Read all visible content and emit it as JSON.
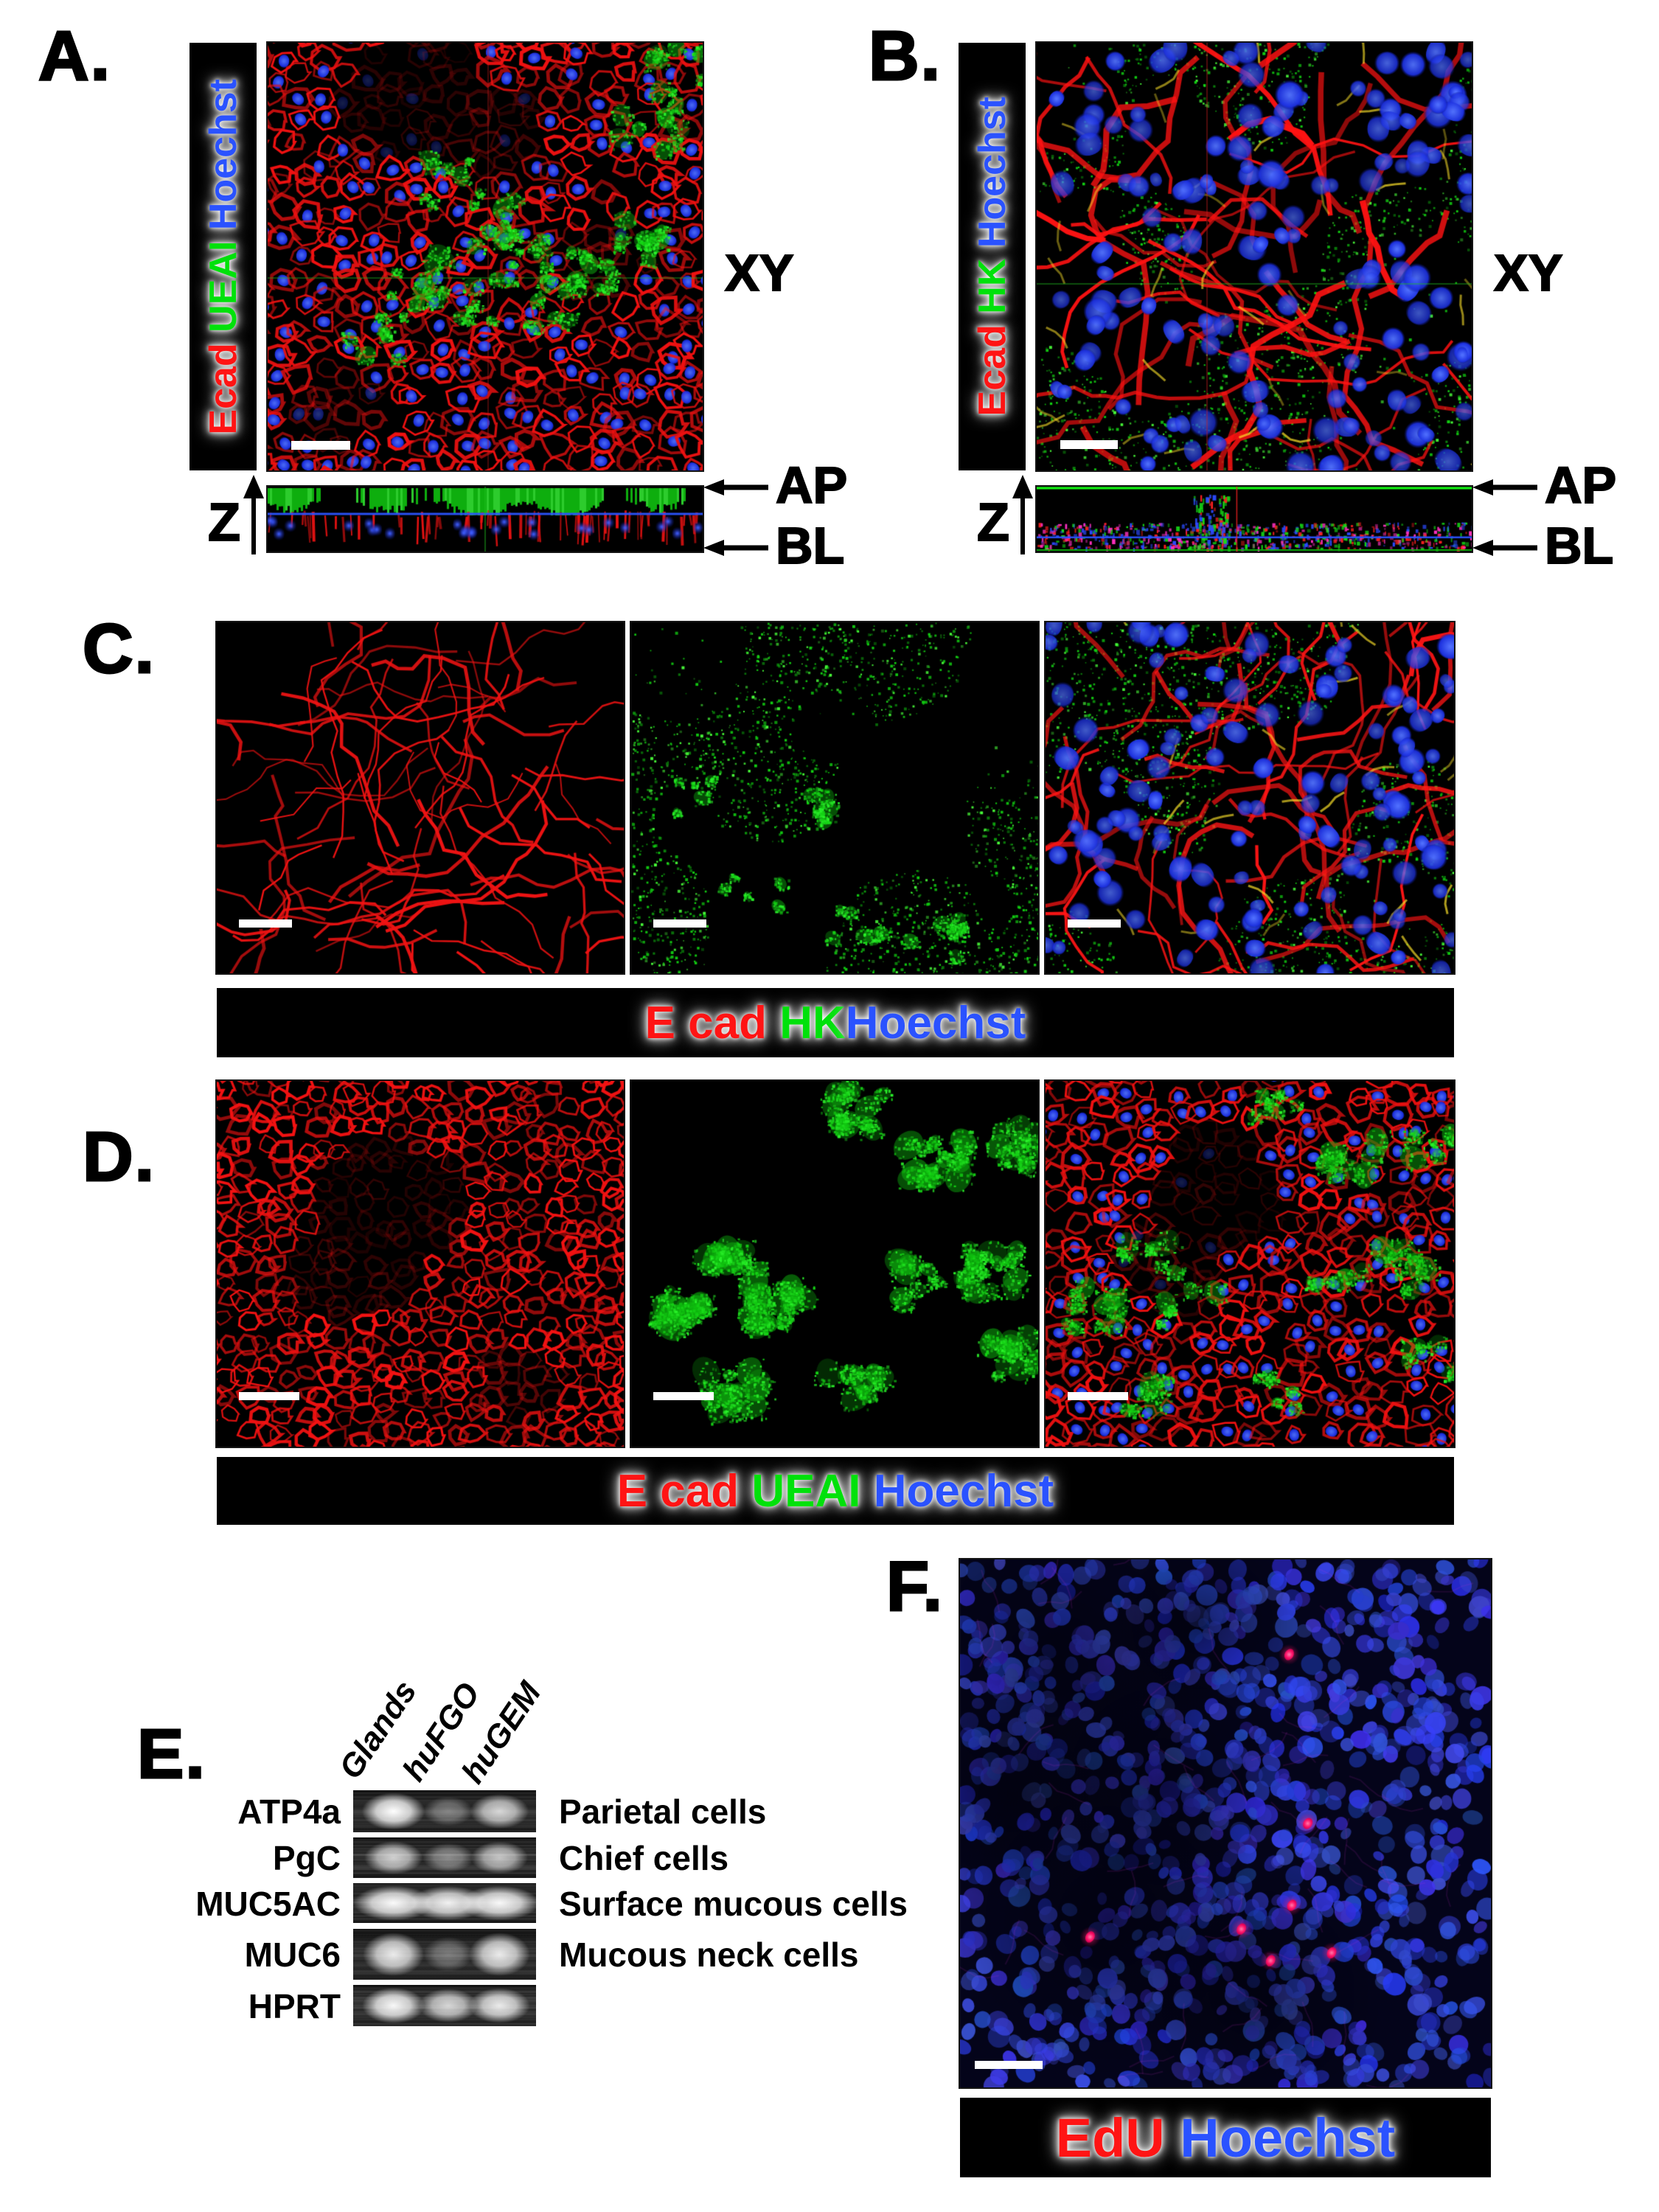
{
  "colors": {
    "red": "#ff1414",
    "green": "#00e10b",
    "blue": "#2a52ff",
    "bar_background": "#000000",
    "scalebar": "#ffffff"
  },
  "panelA": {
    "letter": "A.",
    "view_label": "XY",
    "z_axis_label": "Z",
    "apical_label": "AP",
    "basolateral_label": "BL",
    "markers": [
      {
        "text": "Ecad ",
        "color": "#ff1414"
      },
      {
        "text": "UEAI ",
        "color": "#00e10b"
      },
      {
        "text": "Hoechst",
        "color": "#2a52ff"
      }
    ]
  },
  "panelB": {
    "letter": "B.",
    "view_label": "XY",
    "z_axis_label": "Z",
    "apical_label": "AP",
    "basolateral_label": "BL",
    "markers": [
      {
        "text": "Ecad ",
        "color": "#ff1414"
      },
      {
        "text": "HK ",
        "color": "#00e10b"
      },
      {
        "text": "Hoechst",
        "color": "#2a52ff"
      }
    ]
  },
  "panelC": {
    "letter": "C.",
    "caption": [
      {
        "text": "E cad ",
        "color": "#ff1414"
      },
      {
        "text": "HK",
        "color": "#00e10b"
      },
      {
        "text": "Hoechst",
        "color": "#2a52ff"
      }
    ]
  },
  "panelD": {
    "letter": "D.",
    "caption": [
      {
        "text": "E cad ",
        "color": "#ff1414"
      },
      {
        "text": "UEAI ",
        "color": "#00e10b"
      },
      {
        "text": "Hoechst",
        "color": "#2a52ff"
      }
    ]
  },
  "panelE": {
    "letter": "E.",
    "lanes": [
      "Glands",
      "huFGO",
      "huGEM"
    ],
    "rows": [
      {
        "gene": "ATP4a",
        "cell_type": "Parietal cells",
        "band_intensities": [
          1.0,
          0.38,
          0.8
        ]
      },
      {
        "gene": "PgC",
        "cell_type": "Chief cells",
        "band_intensities": [
          0.78,
          0.45,
          0.72
        ]
      },
      {
        "gene": "MUC5AC",
        "cell_type": "Surface mucous cells",
        "band_intensities": [
          0.98,
          0.93,
          0.97
        ]
      },
      {
        "gene": "MUC6",
        "cell_type": "Mucous neck cells",
        "band_intensities": [
          0.9,
          0.35,
          0.9
        ]
      },
      {
        "gene": "HPRT",
        "cell_type": "",
        "band_intensities": [
          0.97,
          0.8,
          0.9
        ]
      }
    ]
  },
  "panelF": {
    "letter": "F.",
    "caption": [
      {
        "text": "EdU ",
        "color": "#ff1414"
      },
      {
        "text": "Hoechst",
        "color": "#2a52ff"
      }
    ],
    "edu_positive_cells": [
      [
        0.62,
        0.18
      ],
      [
        0.655,
        0.5
      ],
      [
        0.245,
        0.715
      ],
      [
        0.53,
        0.7
      ],
      [
        0.585,
        0.76
      ],
      [
        0.7,
        0.745
      ],
      [
        0.625,
        0.655
      ]
    ]
  },
  "chart_data": {
    "type": "table",
    "title": "RT-PCR gastric lineage markers",
    "columns": [
      "Glands",
      "huFGO",
      "huGEM"
    ],
    "rows": [
      "ATP4a",
      "PgC",
      "MUC5AC",
      "MUC6",
      "HPRT"
    ],
    "values": [
      [
        1.0,
        0.38,
        0.8
      ],
      [
        0.78,
        0.45,
        0.72
      ],
      [
        0.98,
        0.93,
        0.97
      ],
      [
        0.9,
        0.35,
        0.9
      ],
      [
        0.97,
        0.8,
        0.9
      ]
    ]
  }
}
